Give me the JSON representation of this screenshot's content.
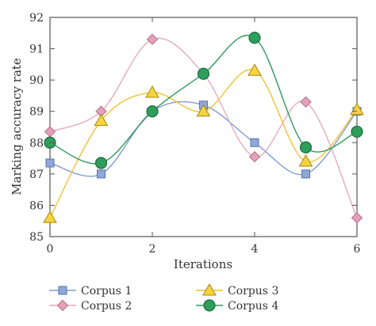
{
  "chart_data": {
    "type": "line",
    "xlabel": "Iterations",
    "ylabel": "Marking accuracy rate",
    "xlim": [
      0,
      6
    ],
    "ylim": [
      85,
      92
    ],
    "x_ticks": [
      0,
      2,
      4,
      6
    ],
    "y_ticks": [
      85,
      86,
      87,
      88,
      89,
      90,
      91,
      92
    ],
    "x": [
      0,
      1,
      2,
      3,
      4,
      5,
      6
    ],
    "grid": false,
    "legend_position": "bottom",
    "series": [
      {
        "name": "Corpus 1",
        "marker": "square",
        "color": "#7f9bcf",
        "fill": "#8fa8d8",
        "values": [
          87.35,
          87.0,
          89.0,
          89.2,
          88.0,
          87.0,
          89.0
        ]
      },
      {
        "name": "Corpus 2",
        "marker": "diamond",
        "color": "#e8a9bc",
        "fill": "#e3a0b8",
        "values": [
          88.35,
          89.0,
          91.3,
          90.2,
          87.55,
          89.3,
          85.6
        ]
      },
      {
        "name": "Corpus 3",
        "marker": "triangle",
        "color": "#f0c232",
        "fill": "#f7d43a",
        "values": [
          85.6,
          88.7,
          89.6,
          89.0,
          90.3,
          87.4,
          89.05
        ]
      },
      {
        "name": "Corpus 4",
        "marker": "circle",
        "color": "#2f9a5f",
        "fill": "#2e9e5b",
        "values": [
          88.0,
          87.35,
          89.0,
          90.2,
          91.35,
          87.85,
          88.35
        ]
      }
    ]
  }
}
